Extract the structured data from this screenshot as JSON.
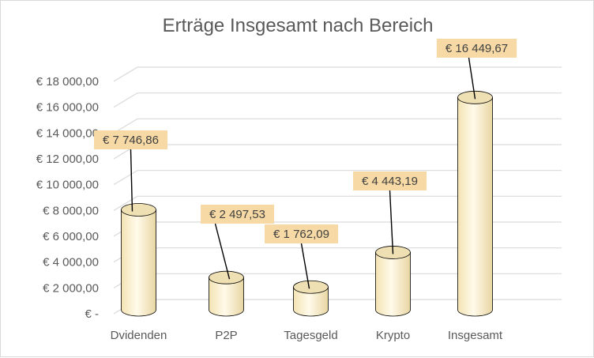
{
  "chart_data": {
    "type": "bar",
    "style": "3d-cylinder",
    "title": "Erträge Insgesamt nach Bereich",
    "categories": [
      "Dvidenden",
      "P2P",
      "Tagesgeld",
      "Krypto",
      "Insgesamt"
    ],
    "values": [
      7746.86,
      2497.53,
      1762.09,
      4443.19,
      16449.67
    ],
    "data_labels": [
      "€ 7 746,86",
      "€ 2 497,53",
      "€ 1 762,09",
      "€ 4 443,19",
      "€ 16 449,67"
    ],
    "y_ticks": [
      {
        "value": 0,
        "label": "€ -"
      },
      {
        "value": 2000,
        "label": "€ 2 000,00"
      },
      {
        "value": 4000,
        "label": "€ 4 000,00"
      },
      {
        "value": 6000,
        "label": "€ 6 000,00"
      },
      {
        "value": 8000,
        "label": "€ 8 000,00"
      },
      {
        "value": 10000,
        "label": "€ 10 000,00"
      },
      {
        "value": 12000,
        "label": "€ 12 000,00"
      },
      {
        "value": 14000,
        "label": "€ 14 000,00"
      },
      {
        "value": 16000,
        "label": "€ 16 000,00"
      },
      {
        "value": 18000,
        "label": "€ 18 000,00"
      }
    ],
    "ylim": [
      0,
      18000
    ],
    "grid": true,
    "legend": "none",
    "colors": {
      "bar_fill": "#fdf3d2",
      "bar_stroke": "#000000",
      "label_fill": "#f6d9a4",
      "gridline": "#d9d9d9"
    }
  }
}
